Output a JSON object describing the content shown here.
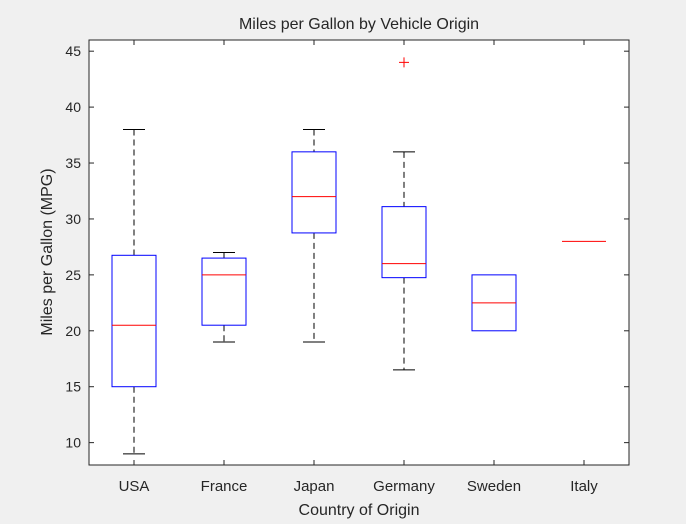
{
  "chart_data": {
    "type": "boxplot",
    "title": "Miles per Gallon by Vehicle Origin",
    "xlabel": "Country of Origin",
    "ylabel": "Miles per Gallon (MPG)",
    "ylim": [
      8,
      46
    ],
    "yticks": [
      10,
      15,
      20,
      25,
      30,
      35,
      40,
      45
    ],
    "grid": false,
    "categories": [
      "USA",
      "France",
      "Japan",
      "Germany",
      "Sweden",
      "Italy"
    ],
    "boxes": [
      {
        "category": "USA",
        "whisker_low": 9,
        "q1": 15,
        "median": 20.5,
        "q3": 26.75,
        "whisker_high": 38,
        "outliers": []
      },
      {
        "category": "France",
        "whisker_low": 19,
        "q1": 20.5,
        "median": 25,
        "q3": 26.5,
        "whisker_high": 27,
        "outliers": []
      },
      {
        "category": "Japan",
        "whisker_low": 19,
        "q1": 28.75,
        "median": 32,
        "q3": 36,
        "whisker_high": 38,
        "outliers": []
      },
      {
        "category": "Germany",
        "whisker_low": 16.5,
        "q1": 24.75,
        "median": 26,
        "q3": 31.1,
        "whisker_high": 36,
        "outliers": [
          44
        ]
      },
      {
        "category": "Sweden",
        "whisker_low": 20,
        "q1": 20,
        "median": 22.5,
        "q3": 25,
        "whisker_high": 25,
        "outliers": []
      },
      {
        "category": "Italy",
        "whisker_low": 28,
        "q1": 28,
        "median": 28,
        "q3": 28,
        "whisker_high": 28,
        "outliers": []
      }
    ],
    "colors": {
      "box": "#0000ff",
      "median": "#ff0000",
      "whisker": "#000000",
      "outlier": "#ff0000",
      "axes": "#262626",
      "plot_bg": "#ffffff",
      "figure_bg": "#f0f0f0"
    }
  }
}
